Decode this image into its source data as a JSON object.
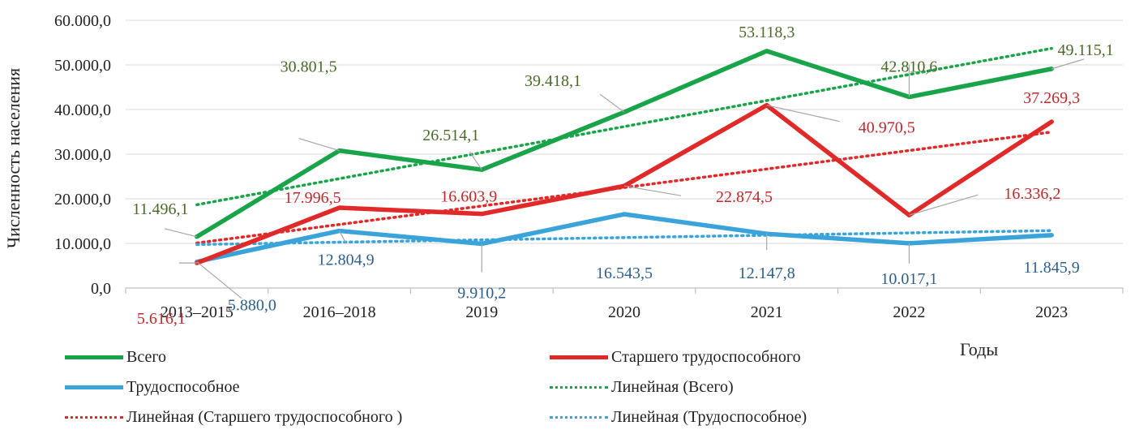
{
  "chart_data": {
    "type": "line",
    "ylabel": "Численность населения",
    "xlabel": "Годы",
    "categories": [
      "2013–2015",
      "2016–2018",
      "2019",
      "2020",
      "2021",
      "2022",
      "2023"
    ],
    "ylim": [
      0,
      60000
    ],
    "yticks": [
      0,
      10000,
      20000,
      30000,
      40000,
      50000,
      60000
    ],
    "ytick_labels": [
      "0,0",
      "10.000,0",
      "20.000,0",
      "30.000,0",
      "40.000,0",
      "50.000,0",
      "60.000,0"
    ],
    "grid": true,
    "legend_position": "bottom",
    "series": [
      {
        "name": "Всего",
        "color": "#1aa44a",
        "values": [
          11496.1,
          30801.5,
          26514.1,
          39418.1,
          53118.3,
          42810.6,
          49115.1
        ],
        "labels": [
          "11.496,1",
          "30.801,5",
          "26.514,1",
          "39.418,1",
          "53.118,3",
          "42.810,6",
          "49.115,1"
        ],
        "label_color": "#4a6a2a"
      },
      {
        "name": "Старшего трудоспособного",
        "color": "#e02a2a",
        "values": [
          5616.1,
          17996.5,
          16603.9,
          22874.5,
          40970.5,
          16336.2,
          37269.3
        ],
        "labels": [
          "5.616,1",
          "17.996,5",
          "16.603,9",
          "22.874,5",
          "40.970,5",
          "16.336,2",
          "37.269,3"
        ],
        "label_color": "#c0282a"
      },
      {
        "name": "Трудоспособное",
        "color": "#39a3da",
        "values": [
          5880.0,
          12804.9,
          9910.2,
          16543.5,
          12147.8,
          10017.1,
          11845.9
        ],
        "labels": [
          "5.880,0",
          "12.804,9",
          "9.910,2",
          "16.543,5",
          "12.147,8",
          "10.017,1",
          "11.845,9"
        ],
        "label_color": "#2e5f8a"
      }
    ],
    "trendlines": [
      {
        "name": "Линейная (Всего)",
        "of": "Всего",
        "color": "#1aa44a"
      },
      {
        "name": "Линейная (Старшего трудоспособного )",
        "of": "Старшего трудоспособного",
        "color": "#e02a2a"
      },
      {
        "name": "Линейная (Трудоспособное)",
        "of": "Трудоспособное",
        "color": "#39a3da"
      }
    ]
  }
}
